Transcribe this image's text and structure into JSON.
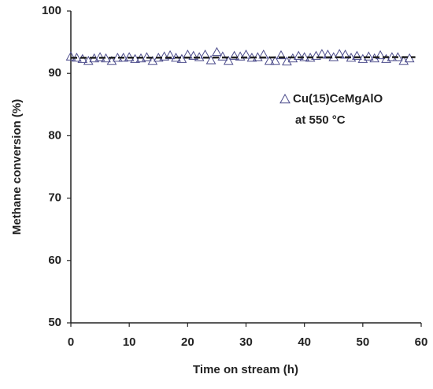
{
  "chart_data": {
    "type": "scatter",
    "xlabel": "Time on stream (h)",
    "ylabel": "Methane conversion (%)",
    "xlim": [
      0,
      60
    ],
    "xticks": [
      0,
      10,
      20,
      30,
      40,
      50,
      60
    ],
    "ylim": [
      50,
      100
    ],
    "yticks": [
      50,
      60,
      70,
      80,
      90,
      100
    ],
    "grid": false,
    "legend": "upper right",
    "annotation": "at 550 °C",
    "series": [
      {
        "name": "Cu(15)CeMgAlO",
        "color": "#4a4a8a",
        "marker": "open-triangle",
        "x": [
          0,
          1,
          2,
          3,
          4,
          5,
          6,
          7,
          8,
          9,
          10,
          11,
          12,
          13,
          14,
          15,
          16,
          17,
          18,
          19,
          20,
          21,
          22,
          23,
          24,
          25,
          26,
          27,
          28,
          29,
          30,
          31,
          32,
          33,
          34,
          35,
          36,
          37,
          38,
          39,
          40,
          41,
          42,
          43,
          44,
          45,
          46,
          47,
          48,
          49,
          50,
          51,
          52,
          53,
          54,
          55,
          56,
          57,
          58
        ],
        "values": [
          92.7,
          92.5,
          92.3,
          92.0,
          92.4,
          92.6,
          92.4,
          92.0,
          92.5,
          92.5,
          92.6,
          92.3,
          92.4,
          92.6,
          92.0,
          92.5,
          92.7,
          92.9,
          92.5,
          92.3,
          93.0,
          92.8,
          92.6,
          93.0,
          92.1,
          93.4,
          92.7,
          92.0,
          92.8,
          92.7,
          93.0,
          92.5,
          92.6,
          93.0,
          92.0,
          92.0,
          92.9,
          91.9,
          92.4,
          92.8,
          92.6,
          92.5,
          92.8,
          93.1,
          93.0,
          92.6,
          93.1,
          93.0,
          92.5,
          92.8,
          92.3,
          92.7,
          92.4,
          92.9,
          92.3,
          92.6,
          92.6,
          92.0,
          92.4
        ]
      },
      {
        "color": "#222222",
        "line_style": "dashed",
        "x": [
          0,
          59
        ],
        "values": [
          92.5,
          92.6
        ]
      }
    ]
  }
}
